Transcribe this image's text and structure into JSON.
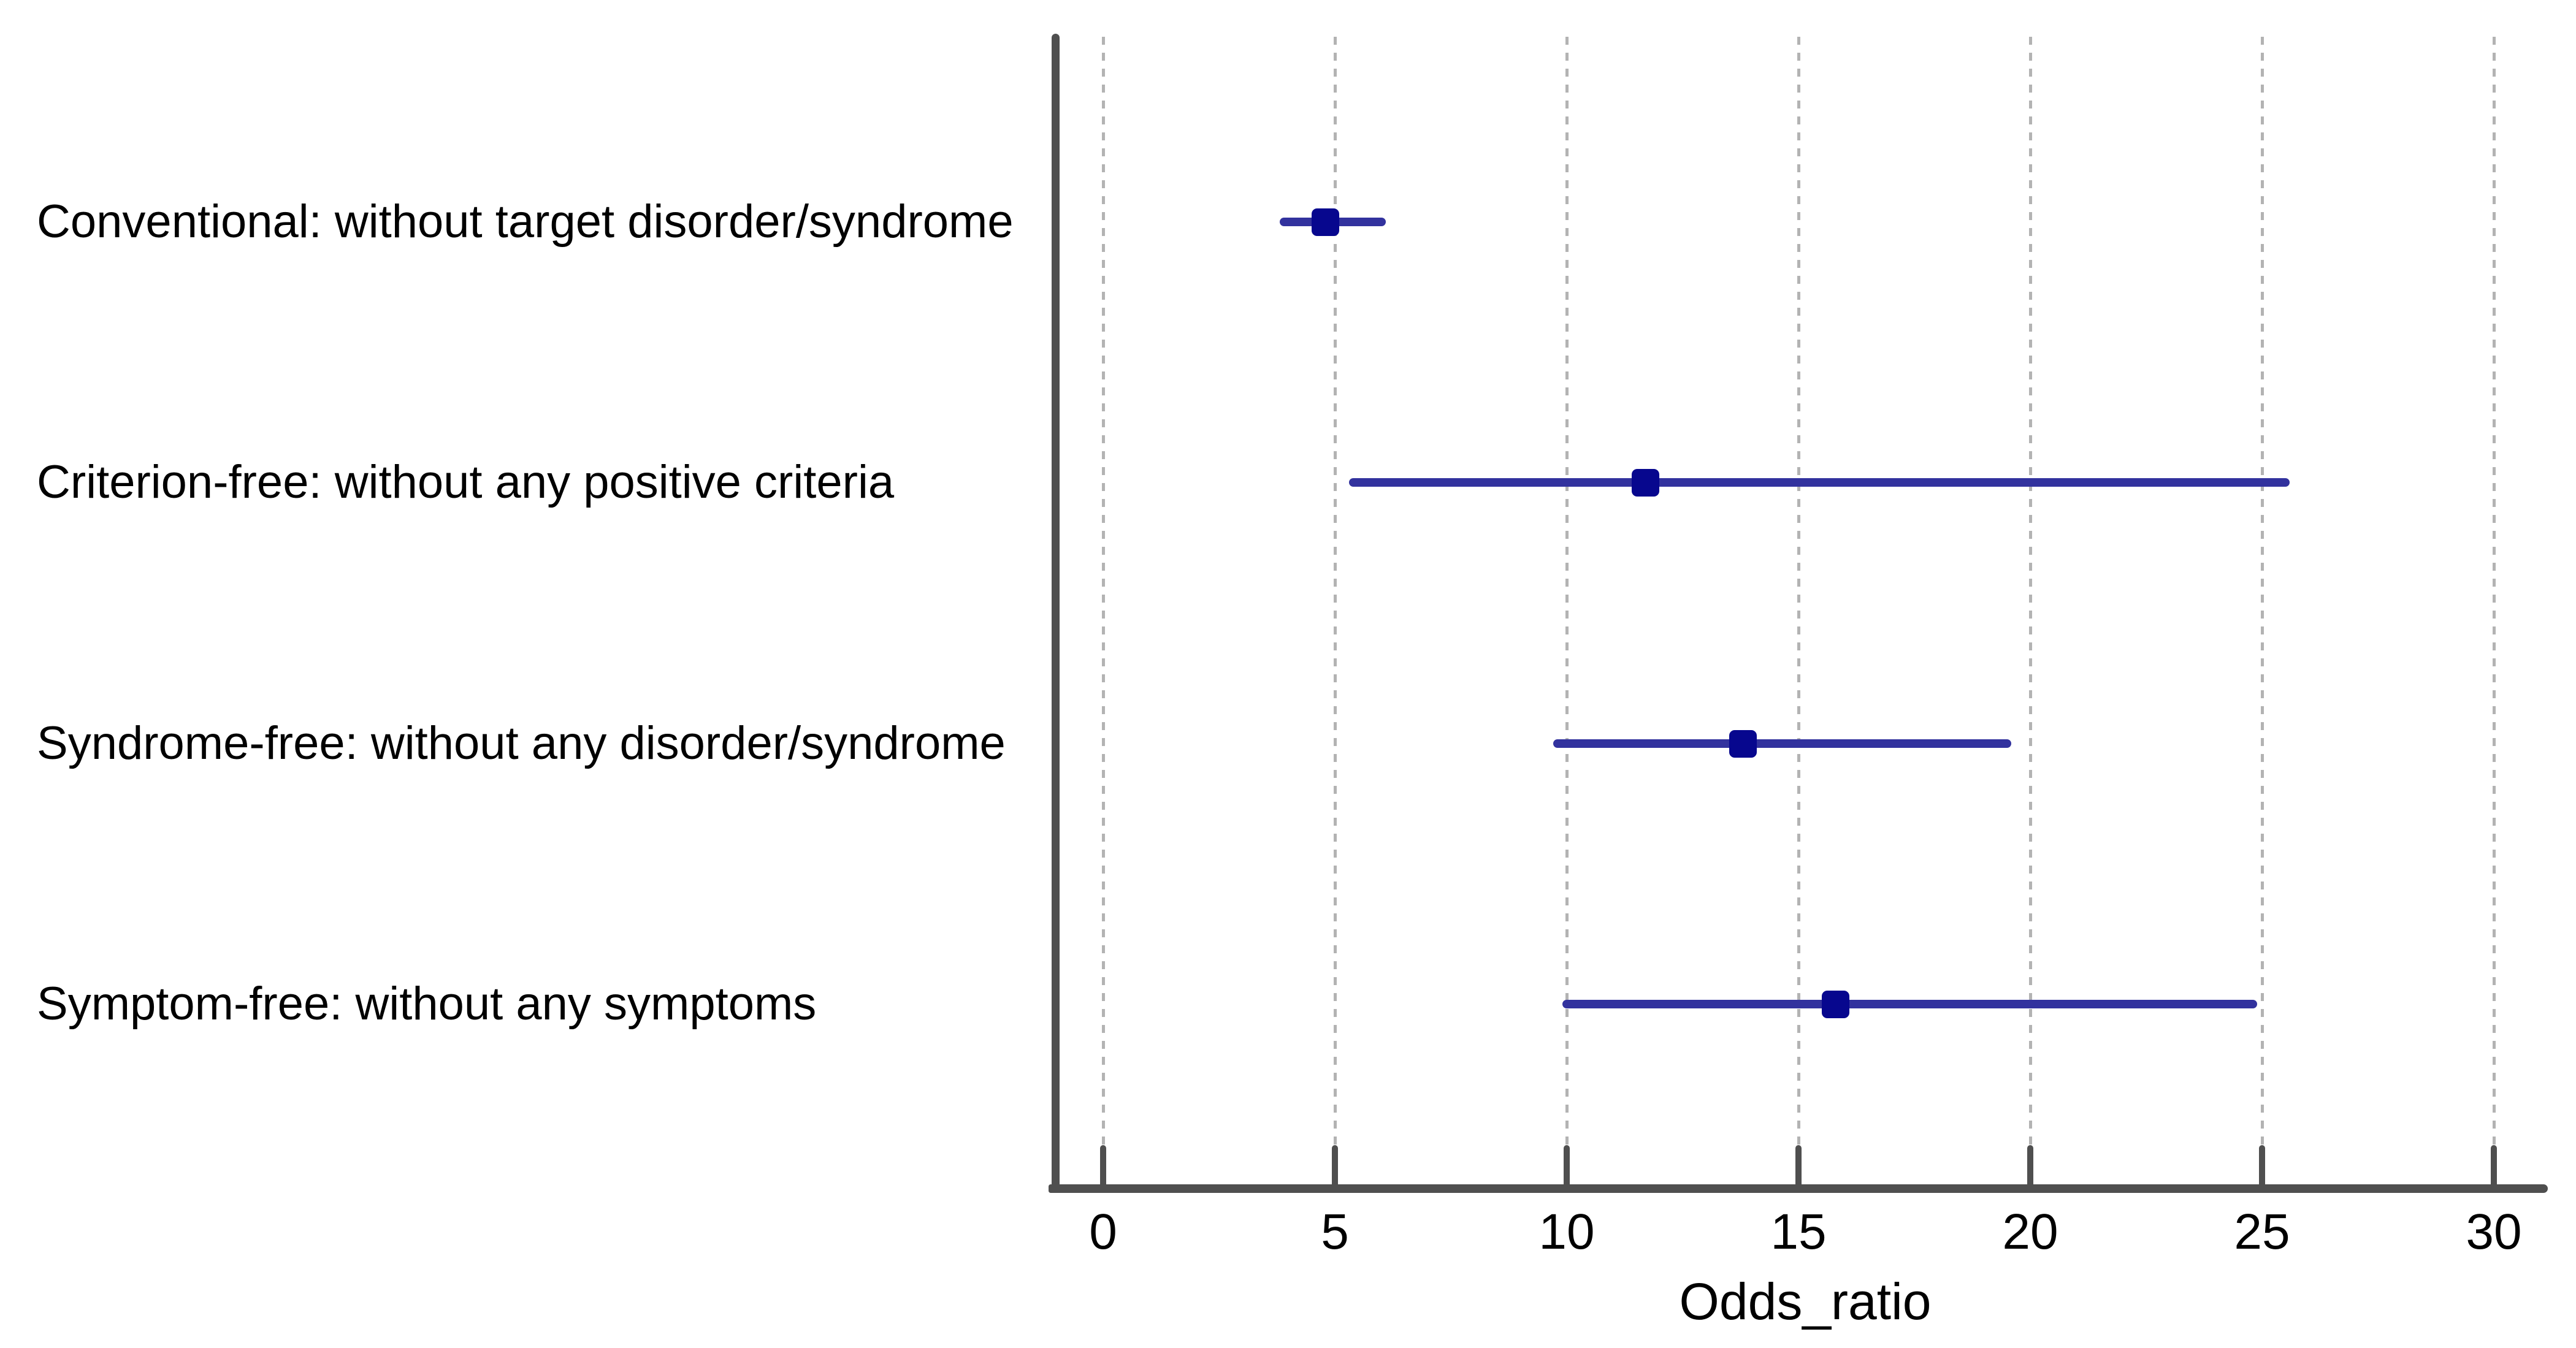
{
  "figure": {
    "xlabel": "Odds_ratio"
  },
  "colors": {
    "background": "#ffffff",
    "axis": "#4f4f4f",
    "gridline": "#b3b3b3",
    "ci_line": "#32329e",
    "marker": "#07078e",
    "text": "#000000"
  },
  "chart_data": {
    "type": "scatter",
    "variant": "forest-plot",
    "orientation": "horizontal",
    "title": "",
    "xlabel": "Odds_ratio",
    "ylabel": "",
    "xlim": [
      0,
      31.3
    ],
    "xticks": [
      0,
      5,
      10,
      15,
      20,
      25,
      30
    ],
    "grid": "vertical-dashed",
    "legend": "none",
    "categories": [
      "Conventional: without target disorder/syndrome",
      "Criterion-free: without any positive criteria",
      "Syndrome-free: without any disorder/syndrome",
      "Symptom-free: without any symptoms"
    ],
    "series": [
      {
        "points": [
          {
            "category": "Conventional: without target disorder/syndrome",
            "odds_ratio": 4.8,
            "ci_low": 3.9,
            "ci_high": 6.0
          },
          {
            "category": "Criterion-free: without any positive criteria",
            "odds_ratio": 11.7,
            "ci_low": 5.4,
            "ci_high": 25.5
          },
          {
            "category": "Syndrome-free: without any disorder/syndrome",
            "odds_ratio": 13.8,
            "ci_low": 9.8,
            "ci_high": 19.5
          },
          {
            "category": "Symptom-free: without any symptoms",
            "odds_ratio": 15.8,
            "ci_low": 10.0,
            "ci_high": 24.8
          }
        ]
      }
    ]
  }
}
